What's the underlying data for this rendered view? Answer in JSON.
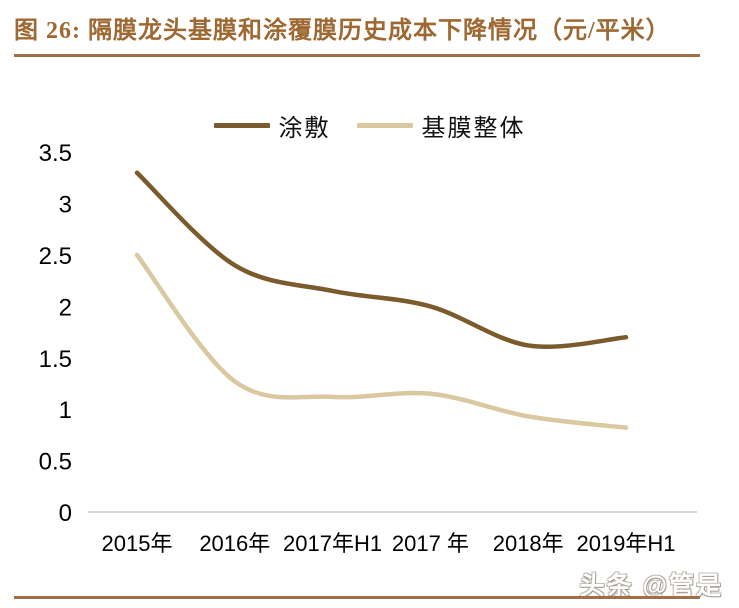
{
  "title": "图 26: 隔膜龙头基膜和涂覆膜历史成本下降情况（元/平米）",
  "watermark": "头条 @管是",
  "colors": {
    "title_text": "#9E6833",
    "rule": "#A36E44",
    "axis_line": "#D9D9D9",
    "tick_text": "#000000",
    "series_coated": "#7B5A2C",
    "series_base_film": "#D9C8A0"
  },
  "chart_data": {
    "type": "line",
    "title": "图 26: 隔膜龙头基膜和涂覆膜历史成本下降情况（元/平米）",
    "categories": [
      "2015年",
      "2016年",
      "2017年H1",
      "2017 年",
      "2018年",
      "2019年H1"
    ],
    "series": [
      {
        "name": "涂敷",
        "color": "#7B5A2C",
        "values": [
          3.3,
          2.4,
          2.15,
          2.0,
          1.62,
          1.7
        ]
      },
      {
        "name": "基膜整体",
        "color": "#D9C8A0",
        "values": [
          2.5,
          1.27,
          1.12,
          1.15,
          0.93,
          0.82
        ]
      }
    ],
    "ylim": [
      0,
      3.5
    ],
    "ytick_labels": [
      "3.5",
      "3",
      "2.5",
      "2",
      "1.5",
      "1",
      "0.5",
      "0"
    ],
    "xlabel": "",
    "ylabel": "",
    "grid": false,
    "legend_position": "top",
    "smooth": true
  }
}
